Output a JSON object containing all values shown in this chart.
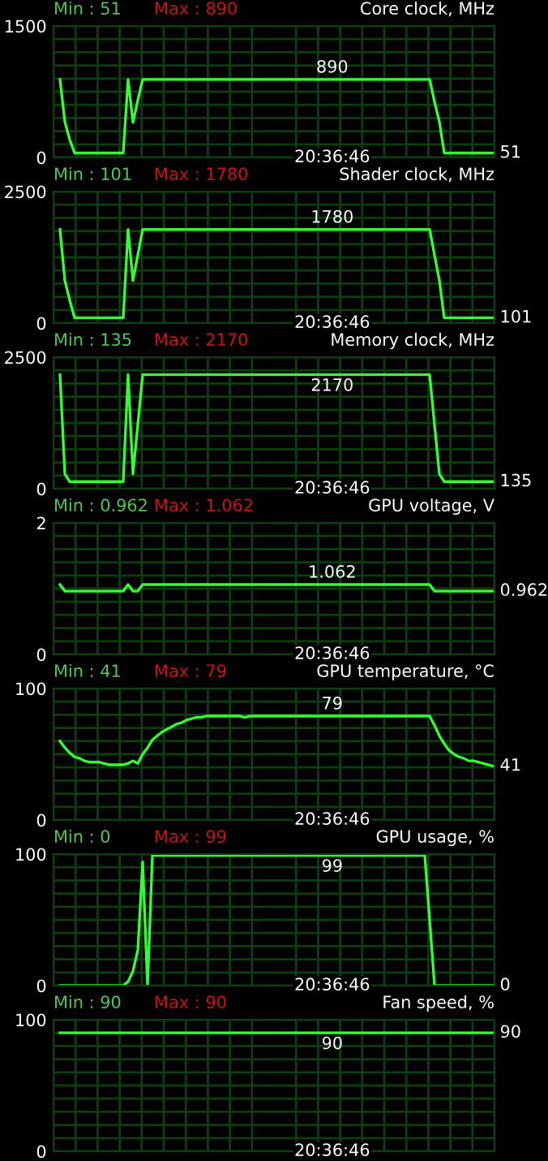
{
  "chart_data": [
    {
      "type": "line",
      "title": "Core clock, MHz",
      "tick_labels": "y",
      "grid": true,
      "categories": [
        null,
        null,
        null,
        null,
        null,
        null,
        null,
        null,
        null,
        null,
        null,
        null,
        null,
        null,
        null,
        null,
        null,
        null,
        null,
        null,
        null,
        null,
        null,
        null,
        null,
        null,
        null,
        null,
        null,
        null,
        null,
        null,
        null,
        null,
        null,
        null,
        null,
        null,
        null,
        null,
        null,
        null,
        null,
        null,
        null,
        null,
        null,
        null,
        null,
        null,
        null,
        null,
        null,
        null,
        null,
        null,
        null,
        null,
        null,
        null,
        null,
        null,
        null,
        null,
        null,
        null,
        null,
        null,
        null,
        null,
        null,
        null,
        null,
        null,
        null,
        null,
        null,
        null,
        null,
        null,
        null,
        null,
        null,
        null,
        null,
        null,
        null,
        null,
        null,
        null
      ],
      "series": [
        {
          "color": "#33ff33",
          "values": [
            890,
            407,
            204,
            51,
            51,
            51,
            51,
            51,
            51,
            51,
            51,
            51,
            51,
            51,
            890,
            400,
            653,
            890,
            890,
            890,
            890,
            890,
            890,
            890,
            890,
            890,
            890,
            890,
            890,
            890,
            890,
            890,
            890,
            890,
            890,
            890,
            890,
            890,
            890,
            890,
            890,
            890,
            890,
            890,
            890,
            890,
            890,
            890,
            890,
            890,
            890,
            890,
            890,
            890,
            890,
            890,
            890,
            890,
            890,
            890,
            890,
            890,
            890,
            890,
            890,
            890,
            890,
            890,
            890,
            890,
            890,
            890,
            890,
            890,
            890,
            890,
            890,
            635,
            407,
            51,
            51,
            51,
            51,
            51,
            51,
            51,
            51,
            51,
            51,
            51
          ]
        }
      ],
      "ylim": [
        0,
        1500
      ],
      "yticks": [
        0,
        {
          "value": 150,
          "label": null
        },
        {
          "value": 300,
          "label": null
        },
        {
          "value": 450,
          "label": null
        },
        {
          "value": 600,
          "label": null
        },
        {
          "value": 750,
          "label": null
        },
        {
          "value": 900,
          "label": null
        },
        {
          "value": 1050,
          "label": null
        },
        {
          "value": 1200,
          "label": null
        },
        {
          "value": 1350,
          "label": null
        },
        1500
      ],
      "annotations": [
        "Min : 51",
        "Max : 890",
        "890",
        "51",
        "20:36:46"
      ]
    },
    {
      "type": "line",
      "title": "Shader clock, MHz",
      "tick_labels": "y",
      "grid": true,
      "categories": [
        null,
        null,
        null,
        null,
        null,
        null,
        null,
        null,
        null,
        null,
        null,
        null,
        null,
        null,
        null,
        null,
        null,
        null,
        null,
        null,
        null,
        null,
        null,
        null,
        null,
        null,
        null,
        null,
        null,
        null,
        null,
        null,
        null,
        null,
        null,
        null,
        null,
        null,
        null,
        null,
        null,
        null,
        null,
        null,
        null,
        null,
        null,
        null,
        null,
        null,
        null,
        null,
        null,
        null,
        null,
        null,
        null,
        null,
        null,
        null,
        null,
        null,
        null,
        null,
        null,
        null,
        null,
        null,
        null,
        null,
        null,
        null,
        null,
        null,
        null,
        null,
        null,
        null,
        null,
        null,
        null,
        null,
        null,
        null,
        null,
        null,
        null,
        null,
        null,
        null
      ],
      "series": [
        {
          "color": "#33ff33",
          "values": [
            1780,
            809,
            436,
            101,
            101,
            101,
            101,
            101,
            101,
            101,
            101,
            101,
            101,
            101,
            1780,
            809,
            1297,
            1780,
            1780,
            1780,
            1780,
            1780,
            1780,
            1780,
            1780,
            1780,
            1780,
            1780,
            1780,
            1780,
            1780,
            1780,
            1780,
            1780,
            1780,
            1780,
            1780,
            1780,
            1780,
            1780,
            1780,
            1780,
            1780,
            1780,
            1780,
            1780,
            1780,
            1780,
            1780,
            1780,
            1780,
            1780,
            1780,
            1780,
            1780,
            1780,
            1780,
            1780,
            1780,
            1780,
            1780,
            1780,
            1780,
            1780,
            1780,
            1780,
            1780,
            1780,
            1780,
            1780,
            1780,
            1780,
            1780,
            1780,
            1780,
            1780,
            1780,
            1297,
            809,
            101,
            101,
            101,
            101,
            101,
            101,
            101,
            101,
            101,
            101,
            101
          ]
        }
      ],
      "ylim": [
        0,
        2500
      ],
      "yticks": [
        0,
        {
          "value": 250,
          "label": null
        },
        {
          "value": 500,
          "label": null
        },
        {
          "value": 750,
          "label": null
        },
        {
          "value": 1000,
          "label": null
        },
        {
          "value": 1250,
          "label": null
        },
        {
          "value": 1500,
          "label": null
        },
        {
          "value": 1750,
          "label": null
        },
        {
          "value": 2000,
          "label": null
        },
        {
          "value": 2250,
          "label": null
        },
        2500
      ],
      "annotations": [
        "Min : 101",
        "Max : 1780",
        "1780",
        "101",
        "20:36:46"
      ]
    },
    {
      "type": "line",
      "title": "Memory clock, MHz",
      "tick_labels": "y",
      "grid": true,
      "categories": [
        null,
        null,
        null,
        null,
        null,
        null,
        null,
        null,
        null,
        null,
        null,
        null,
        null,
        null,
        null,
        null,
        null,
        null,
        null,
        null,
        null,
        null,
        null,
        null,
        null,
        null,
        null,
        null,
        null,
        null,
        null,
        null,
        null,
        null,
        null,
        null,
        null,
        null,
        null,
        null,
        null,
        null,
        null,
        null,
        null,
        null,
        null,
        null,
        null,
        null,
        null,
        null,
        null,
        null,
        null,
        null,
        null,
        null,
        null,
        null,
        null,
        null,
        null,
        null,
        null,
        null,
        null,
        null,
        null,
        null,
        null,
        null,
        null,
        null,
        null,
        null,
        null,
        null,
        null,
        null,
        null,
        null,
        null,
        null,
        null,
        null,
        null,
        null,
        null,
        null
      ],
      "series": [
        {
          "color": "#33ff33",
          "values": [
            2170,
            281,
            135,
            135,
            135,
            135,
            135,
            135,
            135,
            135,
            135,
            135,
            135,
            135,
            2170,
            281,
            1219,
            2170,
            2170,
            2170,
            2170,
            2170,
            2170,
            2170,
            2170,
            2170,
            2170,
            2170,
            2170,
            2170,
            2170,
            2170,
            2170,
            2170,
            2170,
            2170,
            2170,
            2170,
            2170,
            2170,
            2170,
            2170,
            2170,
            2170,
            2170,
            2170,
            2170,
            2170,
            2170,
            2170,
            2170,
            2170,
            2170,
            2170,
            2170,
            2170,
            2170,
            2170,
            2170,
            2170,
            2170,
            2170,
            2170,
            2170,
            2170,
            2170,
            2170,
            2170,
            2170,
            2170,
            2170,
            2170,
            2170,
            2170,
            2170,
            2170,
            2170,
            1219,
            281,
            135,
            135,
            135,
            135,
            135,
            135,
            135,
            135,
            135,
            135,
            135
          ]
        }
      ],
      "ylim": [
        0,
        2500
      ],
      "yticks": [
        0,
        {
          "value": 250,
          "label": null
        },
        {
          "value": 500,
          "label": null
        },
        {
          "value": 750,
          "label": null
        },
        {
          "value": 1000,
          "label": null
        },
        {
          "value": 1250,
          "label": null
        },
        {
          "value": 1500,
          "label": null
        },
        {
          "value": 1750,
          "label": null
        },
        {
          "value": 2000,
          "label": null
        },
        {
          "value": 2250,
          "label": null
        },
        2500
      ],
      "annotations": [
        "Min : 135",
        "Max : 2170",
        "2170",
        "135",
        "20:36:46"
      ]
    },
    {
      "type": "line",
      "title": "GPU voltage, V",
      "tick_labels": "y",
      "grid": true,
      "categories": [
        null,
        null,
        null,
        null,
        null,
        null,
        null,
        null,
        null,
        null,
        null,
        null,
        null,
        null,
        null,
        null,
        null,
        null,
        null,
        null,
        null,
        null,
        null,
        null,
        null,
        null,
        null,
        null,
        null,
        null,
        null,
        null,
        null,
        null,
        null,
        null,
        null,
        null,
        null,
        null,
        null,
        null,
        null,
        null,
        null,
        null,
        null,
        null,
        null,
        null,
        null,
        null,
        null,
        null,
        null,
        null,
        null,
        null,
        null,
        null,
        null,
        null,
        null,
        null,
        null,
        null,
        null,
        null,
        null,
        null,
        null,
        null,
        null,
        null,
        null,
        null,
        null,
        null,
        null,
        null,
        null,
        null,
        null,
        null,
        null,
        null,
        null,
        null,
        null,
        null
      ],
      "series": [
        {
          "color": "#33ff33",
          "values": [
            1.062,
            0.962,
            0.962,
            0.962,
            0.962,
            0.962,
            0.962,
            0.962,
            0.962,
            0.962,
            0.962,
            0.962,
            0.962,
            0.962,
            1.062,
            0.962,
            0.962,
            1.062,
            1.062,
            1.062,
            1.062,
            1.062,
            1.062,
            1.062,
            1.062,
            1.062,
            1.062,
            1.062,
            1.062,
            1.062,
            1.062,
            1.062,
            1.062,
            1.062,
            1.062,
            1.062,
            1.062,
            1.062,
            1.062,
            1.062,
            1.062,
            1.062,
            1.062,
            1.062,
            1.062,
            1.062,
            1.062,
            1.062,
            1.062,
            1.062,
            1.062,
            1.062,
            1.062,
            1.062,
            1.062,
            1.062,
            1.062,
            1.062,
            1.062,
            1.062,
            1.062,
            1.062,
            1.062,
            1.062,
            1.062,
            1.062,
            1.062,
            1.062,
            1.062,
            1.062,
            1.062,
            1.062,
            1.062,
            1.062,
            1.062,
            1.062,
            1.062,
            0.962,
            0.962,
            0.962,
            0.962,
            0.962,
            0.962,
            0.962,
            0.962,
            0.962,
            0.962,
            0.962,
            0.962,
            0.962
          ]
        }
      ],
      "ylim": [
        0,
        2
      ],
      "yticks": [
        0,
        {
          "value": 0.2,
          "label": null
        },
        {
          "value": 0.4,
          "label": null
        },
        {
          "value": 0.6,
          "label": null
        },
        {
          "value": 0.8,
          "label": null
        },
        {
          "value": 1,
          "label": null
        },
        {
          "value": 1.2,
          "label": null
        },
        {
          "value": 1.4,
          "label": null
        },
        {
          "value": 1.6,
          "label": null
        },
        {
          "value": 1.8,
          "label": null
        },
        2
      ],
      "annotations": [
        "Min : 0.962",
        "Max : 1.062",
        "1.062",
        "0.962",
        "20:36:46"
      ]
    },
    {
      "type": "line",
      "title": "GPU temperature, °C",
      "tick_labels": "y",
      "grid": true,
      "categories": [
        null,
        null,
        null,
        null,
        null,
        null,
        null,
        null,
        null,
        null,
        null,
        null,
        null,
        null,
        null,
        null,
        null,
        null,
        null,
        null,
        null,
        null,
        null,
        null,
        null,
        null,
        null,
        null,
        null,
        null,
        null,
        null,
        null,
        null,
        null,
        null,
        null,
        null,
        null,
        null,
        null,
        null,
        null,
        null,
        null,
        null,
        null,
        null,
        null,
        null,
        null,
        null,
        null,
        null,
        null,
        null,
        null,
        null,
        null,
        null,
        null,
        null,
        null,
        null,
        null,
        null,
        null,
        null,
        null,
        null,
        null,
        null,
        null,
        null,
        null,
        null,
        null,
        null,
        null,
        null,
        null,
        null,
        null,
        null,
        null,
        null,
        null,
        null,
        null,
        null
      ],
      "series": [
        {
          "color": "#33ff33",
          "values": [
            60,
            55,
            51,
            48,
            47,
            45,
            44,
            44,
            44,
            43,
            42,
            42,
            42,
            42,
            43,
            45,
            43,
            50,
            55,
            61,
            64,
            67,
            69,
            71,
            73,
            74,
            76,
            77,
            78,
            78,
            79,
            79,
            79,
            79,
            79,
            79,
            79,
            79,
            78,
            79,
            79,
            79,
            79,
            79,
            79,
            79,
            79,
            79,
            79,
            79,
            79,
            79,
            79,
            79,
            79,
            79,
            79,
            79,
            79,
            79,
            79,
            79,
            79,
            79,
            79,
            79,
            79,
            79,
            79,
            79,
            79,
            79,
            79,
            79,
            79,
            79,
            79,
            72,
            64,
            58,
            53,
            50,
            48,
            47,
            45,
            45,
            44,
            43,
            42,
            41
          ]
        }
      ],
      "ylim": [
        0,
        100
      ],
      "yticks": [
        0,
        {
          "value": 10,
          "label": null
        },
        {
          "value": 20,
          "label": null
        },
        {
          "value": 30,
          "label": null
        },
        {
          "value": 40,
          "label": null
        },
        {
          "value": 50,
          "label": null
        },
        {
          "value": 60,
          "label": null
        },
        {
          "value": 70,
          "label": null
        },
        {
          "value": 80,
          "label": null
        },
        {
          "value": 90,
          "label": null
        },
        100
      ],
      "annotations": [
        "Min : 41",
        "Max : 79",
        "79",
        "41",
        "20:36:46"
      ]
    },
    {
      "type": "line",
      "title": "GPU usage, %",
      "tick_labels": "y",
      "grid": true,
      "categories": [
        null,
        null,
        null,
        null,
        null,
        null,
        null,
        null,
        null,
        null,
        null,
        null,
        null,
        null,
        null,
        null,
        null,
        null,
        null,
        null,
        null,
        null,
        null,
        null,
        null,
        null,
        null,
        null,
        null,
        null,
        null,
        null,
        null,
        null,
        null,
        null,
        null,
        null,
        null,
        null,
        null,
        null,
        null,
        null,
        null,
        null,
        null,
        null,
        null,
        null,
        null,
        null,
        null,
        null,
        null,
        null,
        null,
        null,
        null,
        null,
        null,
        null,
        null,
        null,
        null,
        null,
        null,
        null,
        null,
        null,
        null,
        null,
        null,
        null,
        null,
        null,
        null,
        null,
        null,
        null,
        null,
        null,
        null,
        null,
        null,
        null,
        null,
        null,
        null,
        null
      ],
      "series": [
        {
          "color": "#33ff33",
          "values": [
            0,
            0,
            0,
            0,
            0,
            0,
            0,
            0,
            0,
            0,
            0,
            0,
            0,
            0,
            3,
            11,
            27,
            94,
            0,
            99,
            99,
            99,
            99,
            99,
            99,
            99,
            99,
            99,
            99,
            99,
            99,
            99,
            99,
            99,
            99,
            99,
            99,
            99,
            99,
            99,
            99,
            99,
            99,
            99,
            99,
            99,
            99,
            99,
            99,
            99,
            99,
            99,
            99,
            99,
            99,
            99,
            99,
            99,
            99,
            99,
            99,
            99,
            99,
            99,
            99,
            99,
            99,
            99,
            99,
            99,
            99,
            99,
            99,
            99,
            99,
            99,
            50,
            0,
            0,
            0,
            0,
            0,
            0,
            0,
            0,
            0,
            0,
            0,
            0,
            0
          ]
        }
      ],
      "ylim": [
        0,
        100
      ],
      "yticks": [
        0,
        {
          "value": 10,
          "label": null
        },
        {
          "value": 20,
          "label": null
        },
        {
          "value": 30,
          "label": null
        },
        {
          "value": 40,
          "label": null
        },
        {
          "value": 50,
          "label": null
        },
        {
          "value": 60,
          "label": null
        },
        {
          "value": 70,
          "label": null
        },
        {
          "value": 80,
          "label": null
        },
        {
          "value": 90,
          "label": null
        },
        100
      ],
      "annotations": [
        "Min : 0",
        "Max : 99",
        "99",
        "0",
        "20:36:46"
      ]
    },
    {
      "type": "line",
      "title": "Fan speed, %",
      "tick_labels": "y",
      "grid": true,
      "categories": [
        null,
        null,
        null,
        null,
        null,
        null,
        null,
        null,
        null,
        null,
        null,
        null,
        null,
        null,
        null,
        null,
        null,
        null,
        null,
        null,
        null,
        null,
        null,
        null,
        null,
        null,
        null,
        null,
        null,
        null,
        null,
        null,
        null,
        null,
        null,
        null,
        null,
        null,
        null,
        null,
        null,
        null,
        null,
        null,
        null,
        null,
        null,
        null,
        null,
        null,
        null,
        null,
        null,
        null,
        null,
        null,
        null,
        null,
        null,
        null,
        null,
        null,
        null,
        null,
        null,
        null,
        null,
        null,
        null,
        null,
        null,
        null,
        null,
        null,
        null,
        null,
        null,
        null,
        null,
        null,
        null,
        null,
        null,
        null,
        null,
        null,
        null,
        null,
        null,
        null
      ],
      "series": [
        {
          "color": "#33ff33",
          "values": [
            90,
            90,
            90,
            90,
            90,
            90,
            90,
            90,
            90,
            90,
            90,
            90,
            90,
            90,
            90,
            90,
            90,
            90,
            90,
            90,
            90,
            90,
            90,
            90,
            90,
            90,
            90,
            90,
            90,
            90,
            90,
            90,
            90,
            90,
            90,
            90,
            90,
            90,
            90,
            90,
            90,
            90,
            90,
            90,
            90,
            90,
            90,
            90,
            90,
            90,
            90,
            90,
            90,
            90,
            90,
            90,
            90,
            90,
            90,
            90,
            90,
            90,
            90,
            90,
            90,
            90,
            90,
            90,
            90,
            90,
            90,
            90,
            90,
            90,
            90,
            90,
            90,
            90,
            90,
            90,
            90,
            90,
            90,
            90,
            90,
            90,
            90,
            90,
            90,
            90
          ]
        }
      ],
      "ylim": [
        0,
        100
      ],
      "yticks": [
        0,
        {
          "value": 10,
          "label": null
        },
        {
          "value": 20,
          "label": null
        },
        {
          "value": 30,
          "label": null
        },
        {
          "value": 40,
          "label": null
        },
        {
          "value": 50,
          "label": null
        },
        {
          "value": 60,
          "label": null
        },
        {
          "value": 70,
          "label": null
        },
        {
          "value": 80,
          "label": null
        },
        {
          "value": 90,
          "label": null
        },
        100
      ],
      "annotations": [
        "Min : 90",
        "Max : 90",
        "90",
        "90",
        "20:36:46"
      ]
    }
  ]
}
